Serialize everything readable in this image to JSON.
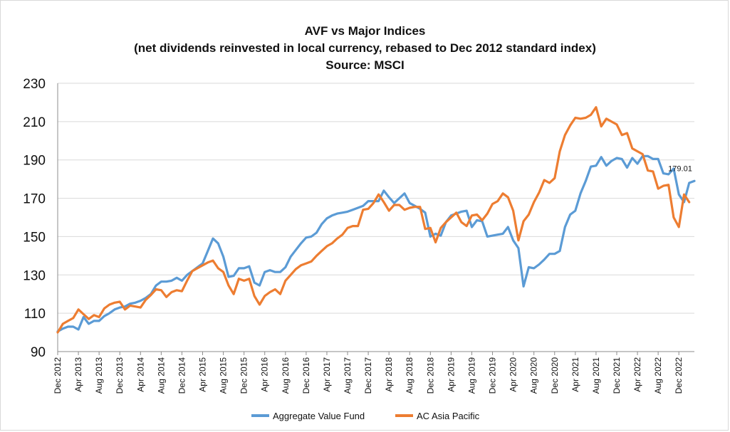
{
  "chart_data": {
    "type": "line",
    "title": "AVF vs Major  Indices",
    "subtitle": "(net dividends reinvested in local currency, rebased to Dec 2012 standard index)",
    "source": "Source: MSCI",
    "xlabel": "",
    "ylabel": "",
    "ylim": [
      90,
      230
    ],
    "y_ticks": [
      90,
      110,
      130,
      150,
      170,
      190,
      210,
      230
    ],
    "x_tick_labels": [
      "Dec 2012",
      "Apr 2013",
      "Aug 2013",
      "Dec 2013",
      "Apr 2014",
      "Aug 2014",
      "Dec 2014",
      "Apr 2015",
      "Aug 2015",
      "Dec 2015",
      "Apr 2016",
      "Aug 2016",
      "Dec 2016",
      "Apr 2017",
      "Aug 2017",
      "Dec 2017",
      "Apr 2018",
      "Aug 2018",
      "Dec 2018",
      "Apr 2019",
      "Aug 2019",
      "Dec 2019",
      "Apr 2020",
      "Aug 2020",
      "Dec 2020",
      "Apr 2021",
      "Aug 2021",
      "Dec 2021",
      "Apr 2022",
      "Aug 2022",
      "Dec 2022"
    ],
    "gridlines": "horizontal",
    "legend_position": "bottom",
    "annotation": "179.01",
    "series": [
      {
        "name": "Aggregate Value Fund",
        "color": "#5b9bd5",
        "values": [
          100.5,
          102,
          103,
          103,
          101.5,
          108,
          104.5,
          106,
          106,
          108.5,
          110,
          112,
          113,
          113.5,
          115,
          115.5,
          116.5,
          118,
          120,
          124.5,
          126.5,
          126.5,
          127,
          128.5,
          127,
          130,
          132,
          134,
          136,
          142.5,
          149,
          146.5,
          139.5,
          129,
          129.5,
          133.5,
          133.5,
          134.5,
          126,
          124.5,
          131.5,
          132.5,
          131.5,
          131.5,
          134,
          139.5,
          143,
          146.5,
          149.5,
          150,
          152,
          156.5,
          159.5,
          161,
          162,
          162.5,
          163,
          164,
          165,
          166,
          168.5,
          168.5,
          168.5,
          174,
          170.5,
          167.5,
          170,
          172.5,
          167.5,
          166,
          164.5,
          162.5,
          150,
          151.5,
          150.5,
          157.5,
          161,
          162,
          163,
          163.5,
          155,
          158.5,
          158,
          150,
          150.5,
          151,
          151.5,
          155,
          148,
          144,
          124,
          134,
          133.5,
          135.5,
          138,
          141,
          141,
          142.5,
          155,
          161.5,
          163.5,
          172.5,
          179,
          186.5,
          187,
          191.5,
          187,
          189.5,
          191,
          190.5,
          186,
          191,
          188,
          192,
          192,
          190.5,
          190.5,
          183,
          182.5,
          185.5,
          172,
          168,
          178,
          179.01
        ]
      },
      {
        "name": "AC Asia Pacific",
        "color": "#ed7d31",
        "values": [
          100,
          104.5,
          106,
          107.5,
          112,
          109.5,
          107,
          109,
          108,
          112.5,
          114.5,
          115.5,
          116,
          112,
          114,
          113.5,
          113,
          117,
          119.5,
          122.5,
          122,
          118.5,
          121,
          122,
          121.5,
          127,
          132,
          133.5,
          135,
          136.5,
          137.5,
          133.5,
          131.5,
          124.5,
          120,
          128,
          127,
          128,
          119,
          114.5,
          119,
          121,
          122.5,
          120,
          127,
          130,
          133,
          135,
          136,
          137,
          140,
          142.5,
          145,
          146.5,
          149,
          151,
          154.5,
          155.5,
          155.5,
          164,
          164.5,
          167.5,
          172,
          168,
          163.5,
          166.5,
          166.5,
          164,
          165,
          165.5,
          165.5,
          154,
          154.5,
          147,
          154.5,
          157.5,
          160,
          162.5,
          157.5,
          155.5,
          161,
          161.5,
          158.5,
          162,
          167,
          168.5,
          172.5,
          170.5,
          163.5,
          148,
          158,
          161.5,
          168,
          173,
          179.5,
          178,
          180.5,
          194.5,
          203,
          208,
          212,
          211.5,
          212,
          213.5,
          217.5,
          207.5,
          211.5,
          210,
          208.5,
          203,
          204,
          196,
          194.5,
          193,
          184.5,
          184,
          175,
          176.5,
          177,
          160,
          155,
          172,
          168
        ]
      }
    ]
  }
}
